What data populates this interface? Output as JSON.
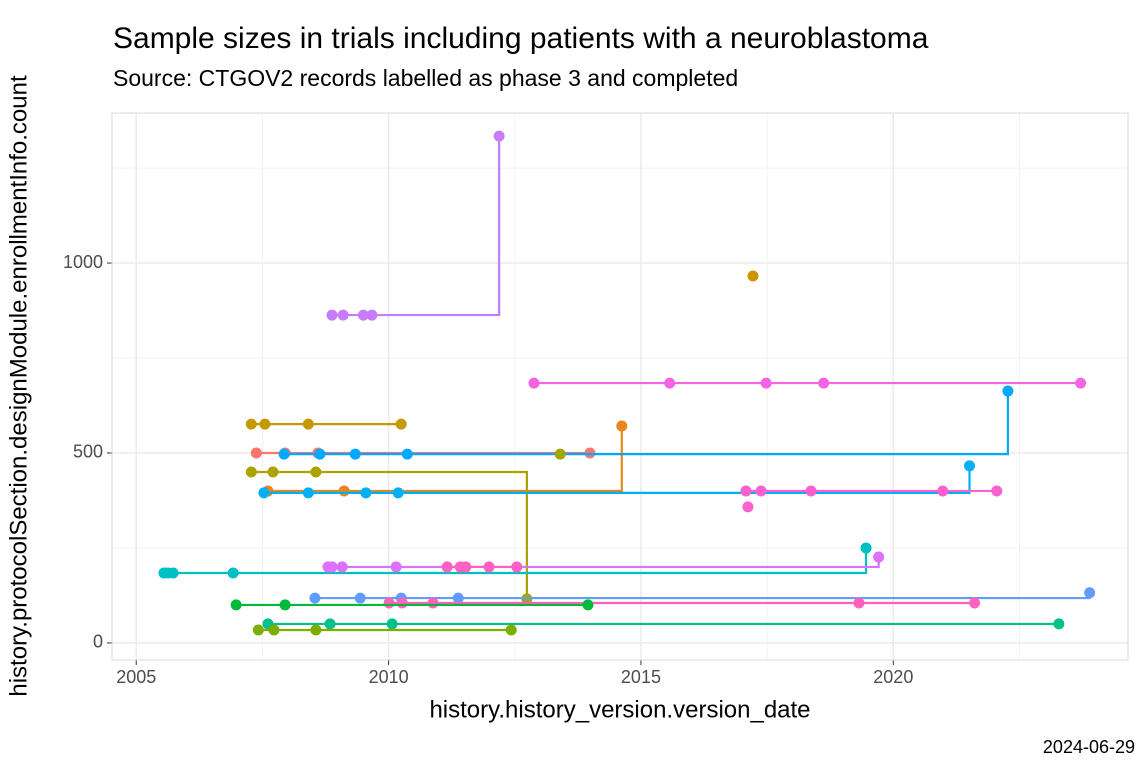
{
  "chart_data": {
    "type": "step",
    "title": "Sample sizes in trials including patients with a neuroblastoma",
    "subtitle": "Source: CTGOV2 records labelled as phase 3 and completed",
    "x_label": "history.history_version.version_date",
    "y_label": "history.protocolSection.designModule.enrollmentInfo.count",
    "caption": "2024-06-29",
    "xlim": [
      2004.52,
      2024.65
    ],
    "ylim": [
      -45,
      1395
    ],
    "xticks": [
      2005,
      2010,
      2015,
      2020
    ],
    "yticks": [
      0,
      500,
      1000
    ],
    "grid": true,
    "series": [
      {
        "color": "#c77cff",
        "x": [
          2008.88,
          2009.1,
          2009.5,
          2009.67,
          2012.19
        ],
        "values": [
          863,
          863,
          863,
          863,
          1334
        ]
      },
      {
        "color": "#cd9600",
        "x": [
          2017.22
        ],
        "values": [
          966
        ]
      },
      {
        "color": "#f564e3",
        "x": [
          2012.88,
          2015.57,
          2017.48,
          2018.62,
          2023.71
        ],
        "values": [
          684,
          684,
          684,
          684,
          684
        ]
      },
      {
        "color": "#c49a00",
        "x": [
          2007.28,
          2007.55,
          2008.41,
          2010.25
        ],
        "values": [
          576,
          576,
          576,
          576
        ]
      },
      {
        "color": "#f8766d",
        "x": [
          2007.38,
          2007.95,
          2008.6,
          2013.99
        ],
        "values": [
          500,
          500,
          500,
          500
        ]
      },
      {
        "color": "#e7861b",
        "x": [
          2007.61,
          2009.12,
          2014.62
        ],
        "values": [
          400,
          400,
          571
        ]
      },
      {
        "color": "#00a9ff",
        "x": [
          2007.93,
          2008.64,
          2009.34,
          2010.37,
          2022.27
        ],
        "values": [
          497,
          497,
          497,
          497,
          663
        ]
      },
      {
        "color": "#aba300",
        "x": [
          2007.28,
          2007.71,
          2008.56,
          2012.74
        ],
        "values": [
          450,
          450,
          450,
          116
        ]
      },
      {
        "color": "#a3a500",
        "x": [
          2013.4
        ],
        "values": [
          497
        ]
      },
      {
        "color": "#00b0f6",
        "x": [
          2007.53,
          2008.41,
          2009.55,
          2010.19,
          2021.51
        ],
        "values": [
          395,
          395,
          395,
          395,
          466
        ]
      },
      {
        "color": "#fd61d1",
        "x": [
          2017.08,
          2017.38,
          2018.37,
          2020.98,
          2022.05
        ],
        "values": [
          400,
          400,
          400,
          400,
          400
        ]
      },
      {
        "color": "#fd61d1",
        "x": [
          2017.12
        ],
        "values": [
          358
        ]
      },
      {
        "color": "#00bfc4",
        "x": [
          2005.55,
          2005.63,
          2005.73,
          2006.92,
          2019.46
        ],
        "values": [
          184,
          184,
          184,
          184,
          250
        ]
      },
      {
        "color": "#dc71fa",
        "x": [
          2008.8,
          2008.88,
          2009.08,
          2010.15,
          2019.71
        ],
        "values": [
          200,
          200,
          200,
          200,
          226
        ]
      },
      {
        "color": "#ff61c3",
        "x": [
          2011.16,
          2011.42,
          2011.53,
          2011.99,
          2012.54
        ],
        "values": [
          200,
          200,
          200,
          200,
          200
        ]
      },
      {
        "color": "#619cff",
        "x": [
          2008.54,
          2009.44,
          2010.25,
          2011.38,
          2023.89
        ],
        "values": [
          118,
          118,
          118,
          118,
          132
        ]
      },
      {
        "color": "#ff62bc",
        "x": [
          2010.01,
          2010.27,
          2010.88,
          2019.32,
          2021.61
        ],
        "values": [
          105,
          105,
          105,
          105,
          105
        ]
      },
      {
        "color": "#00ba38",
        "x": [
          2006.98,
          2007.95,
          2013.95
        ],
        "values": [
          100,
          100,
          100
        ]
      },
      {
        "color": "#00c08b",
        "x": [
          2007.61,
          2008.84,
          2010.07,
          2023.28
        ],
        "values": [
          50,
          50,
          50,
          50
        ]
      },
      {
        "color": "#7cae00",
        "x": [
          2007.42,
          2007.73,
          2008.56,
          2012.43
        ],
        "values": [
          34,
          34,
          34,
          34
        ]
      }
    ]
  }
}
